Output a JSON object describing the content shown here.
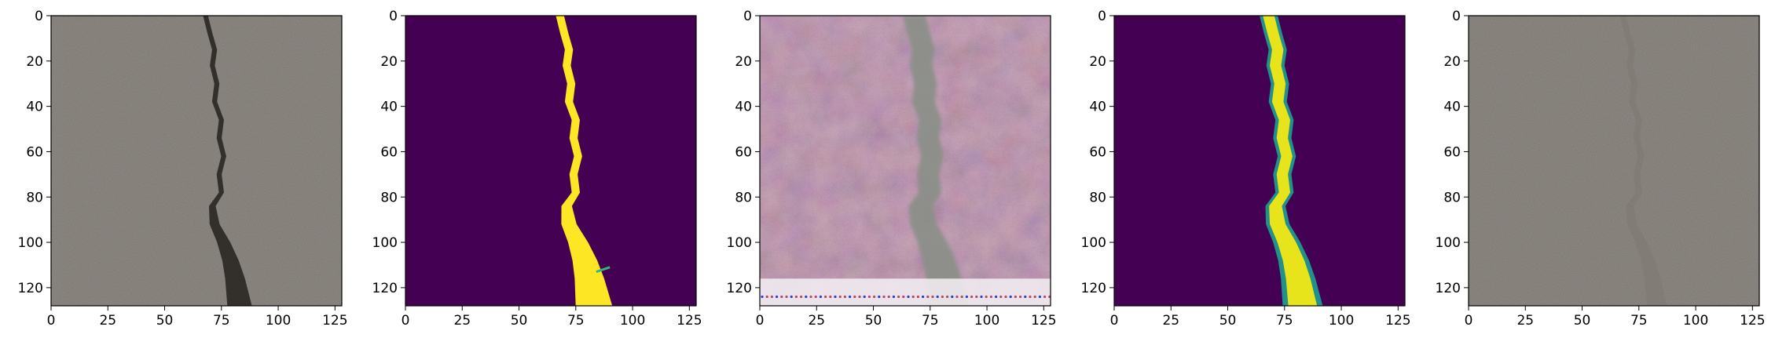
{
  "figure": {
    "panels": [
      {
        "kind": "photo",
        "surface": "#8f8a84",
        "crack": "#2e2a26"
      },
      {
        "kind": "mask",
        "background": "#440154",
        "foreground": "#fde725",
        "edge": "#35b779"
      },
      {
        "kind": "generated",
        "surface": "#c9a8b8",
        "band": "#8a8f88",
        "noise": "#b04a6a"
      },
      {
        "kind": "prediction",
        "background": "#440154",
        "foreground": "#e8e41c",
        "edge": "#21918c"
      },
      {
        "kind": "overlay",
        "surface": "#8f8a84",
        "crack": "#7d7872"
      }
    ],
    "axis": {
      "x_ticks": [
        "0",
        "25",
        "50",
        "75",
        "100",
        "125"
      ],
      "y_ticks": [
        "0",
        "20",
        "40",
        "60",
        "80",
        "100",
        "120"
      ],
      "x_values": [
        0,
        25,
        50,
        75,
        100,
        125
      ],
      "y_values": [
        0,
        20,
        40,
        60,
        80,
        100,
        120
      ],
      "range": [
        0,
        128
      ]
    },
    "crack_path": [
      [
        68,
        0
      ],
      [
        70,
        8
      ],
      [
        72,
        15
      ],
      [
        71,
        22
      ],
      [
        73,
        30
      ],
      [
        72,
        38
      ],
      [
        75,
        46
      ],
      [
        74,
        54
      ],
      [
        76,
        62
      ],
      [
        74,
        70
      ],
      [
        75,
        78
      ],
      [
        71,
        84
      ],
      [
        72,
        92
      ],
      [
        76,
        100
      ],
      [
        79,
        108
      ],
      [
        81,
        116
      ],
      [
        83,
        128
      ]
    ]
  }
}
